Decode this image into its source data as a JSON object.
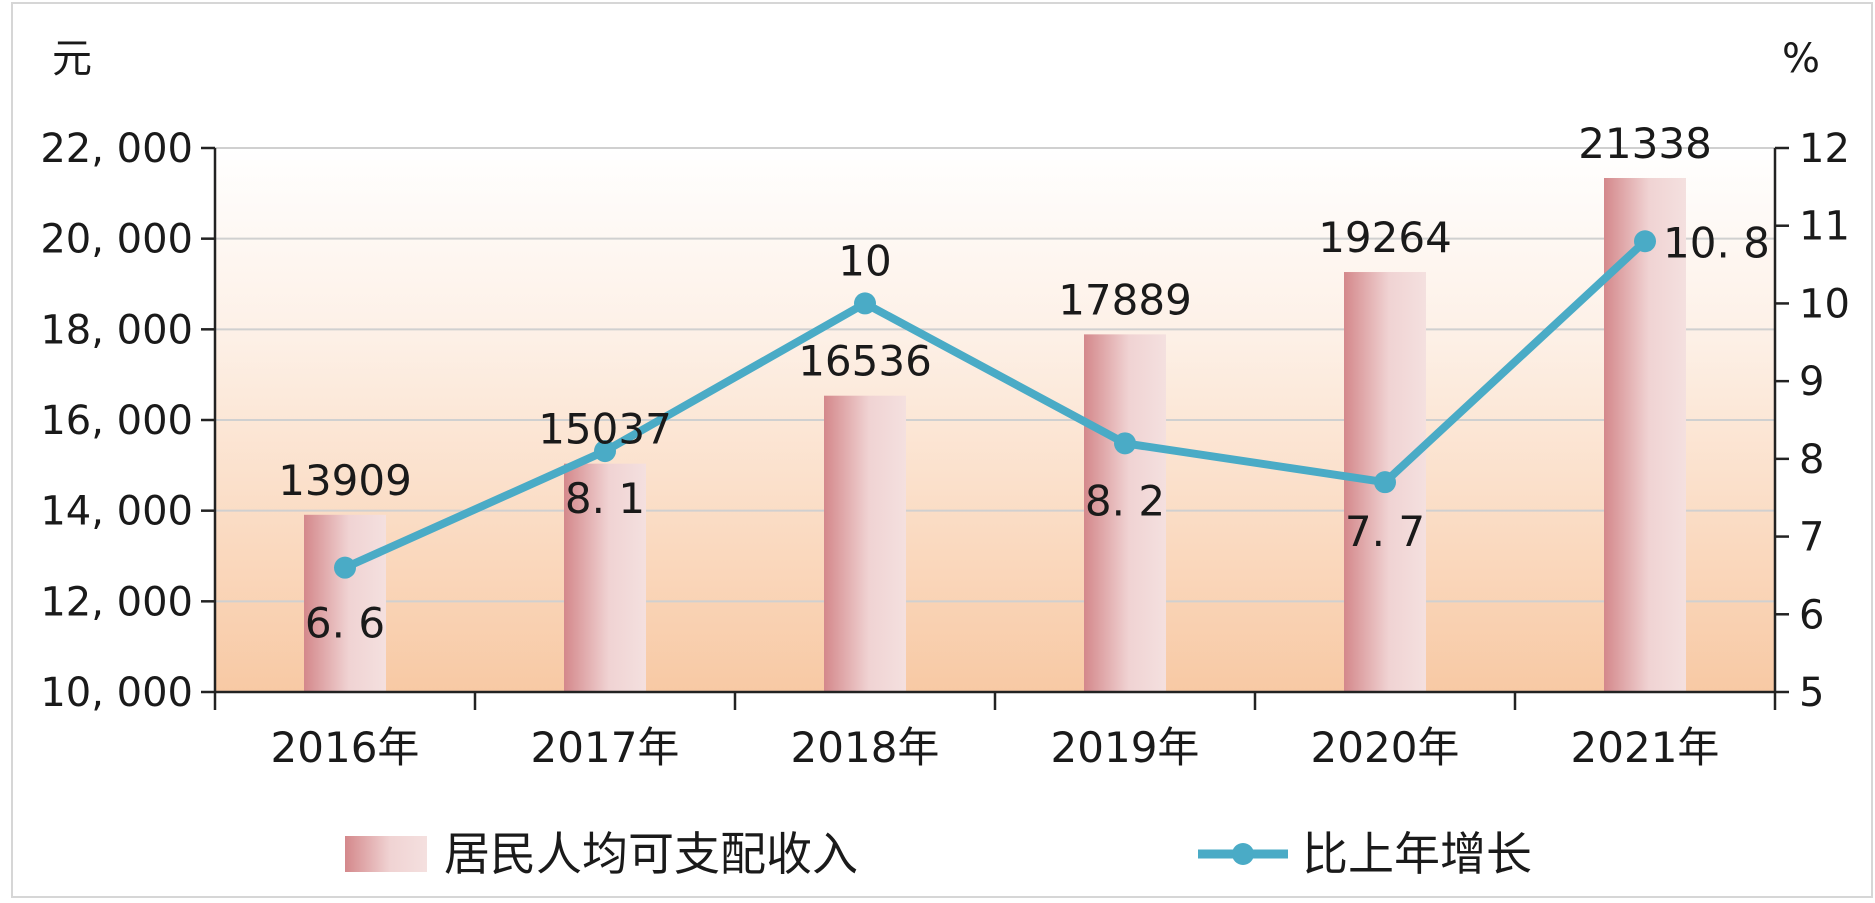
{
  "chart_data": {
    "type": "bar",
    "title": "",
    "left_axis": {
      "unit": "元",
      "ylim": [
        10000,
        22000
      ],
      "ticks": [
        10000,
        12000,
        14000,
        16000,
        18000,
        20000,
        22000
      ],
      "tick_labels": [
        "10, 000",
        "12, 000",
        "14, 000",
        "16, 000",
        "18, 000",
        "20, 000",
        "22, 000"
      ]
    },
    "right_axis": {
      "unit": "%",
      "ylim": [
        5,
        12
      ],
      "ticks": [
        5,
        6,
        7,
        8,
        9,
        10,
        11,
        12
      ],
      "tick_labels": [
        "5",
        "6",
        "7",
        "8",
        "9",
        "10",
        "11",
        "12"
      ]
    },
    "categories": [
      "2016年",
      "2017年",
      "2018年",
      "2019年",
      "2020年",
      "2021年"
    ],
    "series": [
      {
        "name": "居民人均可支配收入",
        "type": "bar",
        "axis": "left",
        "values": [
          13909,
          15037,
          16536,
          17889,
          19264,
          21338
        ],
        "labels": [
          "13909",
          "15037",
          "16536",
          "17889",
          "19264",
          "21338"
        ],
        "color": "#d98f91"
      },
      {
        "name": "比上年增长",
        "type": "line",
        "axis": "right",
        "values": [
          6.6,
          8.1,
          10,
          8.2,
          7.7,
          10.8
        ],
        "labels": [
          "6. 6",
          "8. 1",
          "10",
          "8. 2",
          "7. 7",
          "10. 8"
        ],
        "color": "#4aabc6"
      }
    ],
    "grid": true,
    "legend_position": "bottom"
  }
}
